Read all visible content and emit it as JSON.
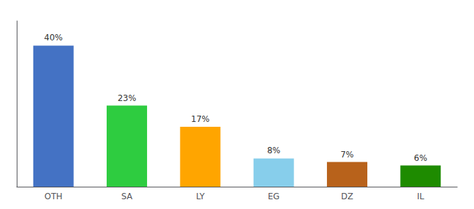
{
  "chart_data": {
    "type": "bar",
    "categories": [
      "OTH",
      "SA",
      "LY",
      "EG",
      "DZ",
      "IL"
    ],
    "values": [
      40,
      23,
      17,
      8,
      7,
      6
    ],
    "value_labels": [
      "40%",
      "23%",
      "17%",
      "8%",
      "7%",
      "6%"
    ],
    "colors": [
      "#4472C4",
      "#2ECC40",
      "#FFA500",
      "#87CEEB",
      "#B8621B",
      "#1E8B00"
    ],
    "data_labels": true,
    "ylim": [
      0,
      47
    ],
    "grid": false,
    "tick_labels": "x"
  }
}
